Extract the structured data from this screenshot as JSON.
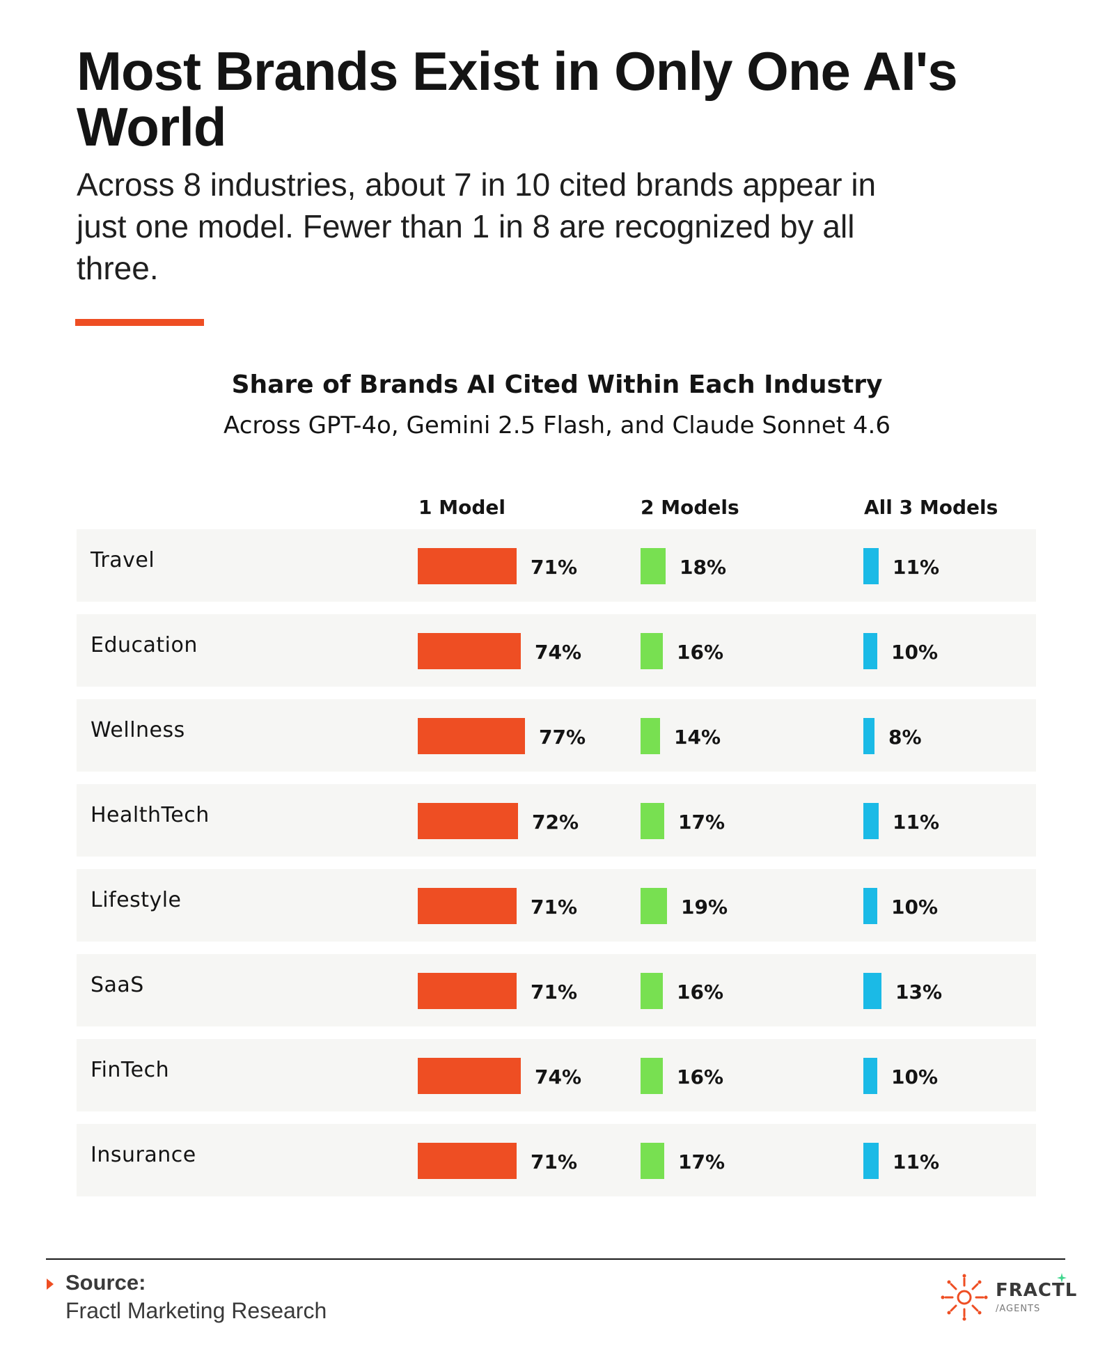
{
  "headline": "Most Brands Exist in Only One AI's World",
  "subhead": "Across 8 industries, about 7 in 10 cited brands appear in just one model. Fewer than 1 in 8 are recognized by all three.",
  "colors": {
    "accent": "#EE4E23",
    "one_model": "#EE4E23",
    "two_models": "#78E051",
    "three_models": "#1BBAE6",
    "row_background": "#F6F6F4"
  },
  "chart_data": {
    "type": "bar",
    "title": "Share of Brands AI Cited Within Each Industry",
    "subtitle": "Across GPT-4o, Gemini 2.5 Flash, and Claude Sonnet 4.6",
    "columns": [
      "1 Model",
      "2 Models",
      "All 3 Models"
    ],
    "categories": [
      "Travel",
      "Education",
      "Wellness",
      "HealthTech",
      "Lifestyle",
      "SaaS",
      "FinTech",
      "Insurance"
    ],
    "series": [
      {
        "name": "1 Model",
        "values": [
          71,
          74,
          77,
          72,
          71,
          71,
          74,
          71
        ]
      },
      {
        "name": "2 Models",
        "values": [
          18,
          16,
          14,
          17,
          19,
          16,
          16,
          17
        ]
      },
      {
        "name": "All 3 Models",
        "values": [
          11,
          10,
          8,
          11,
          10,
          13,
          10,
          11
        ]
      }
    ],
    "value_suffix": "%",
    "legend": "column headers at top"
  },
  "footer": {
    "source_label": "Source:",
    "source_text": "Fractl Marketing Research"
  },
  "logo": {
    "wordmark": "FRACTL",
    "subline": "/AGENTS",
    "icon": "fractl-sunburst-icon"
  }
}
